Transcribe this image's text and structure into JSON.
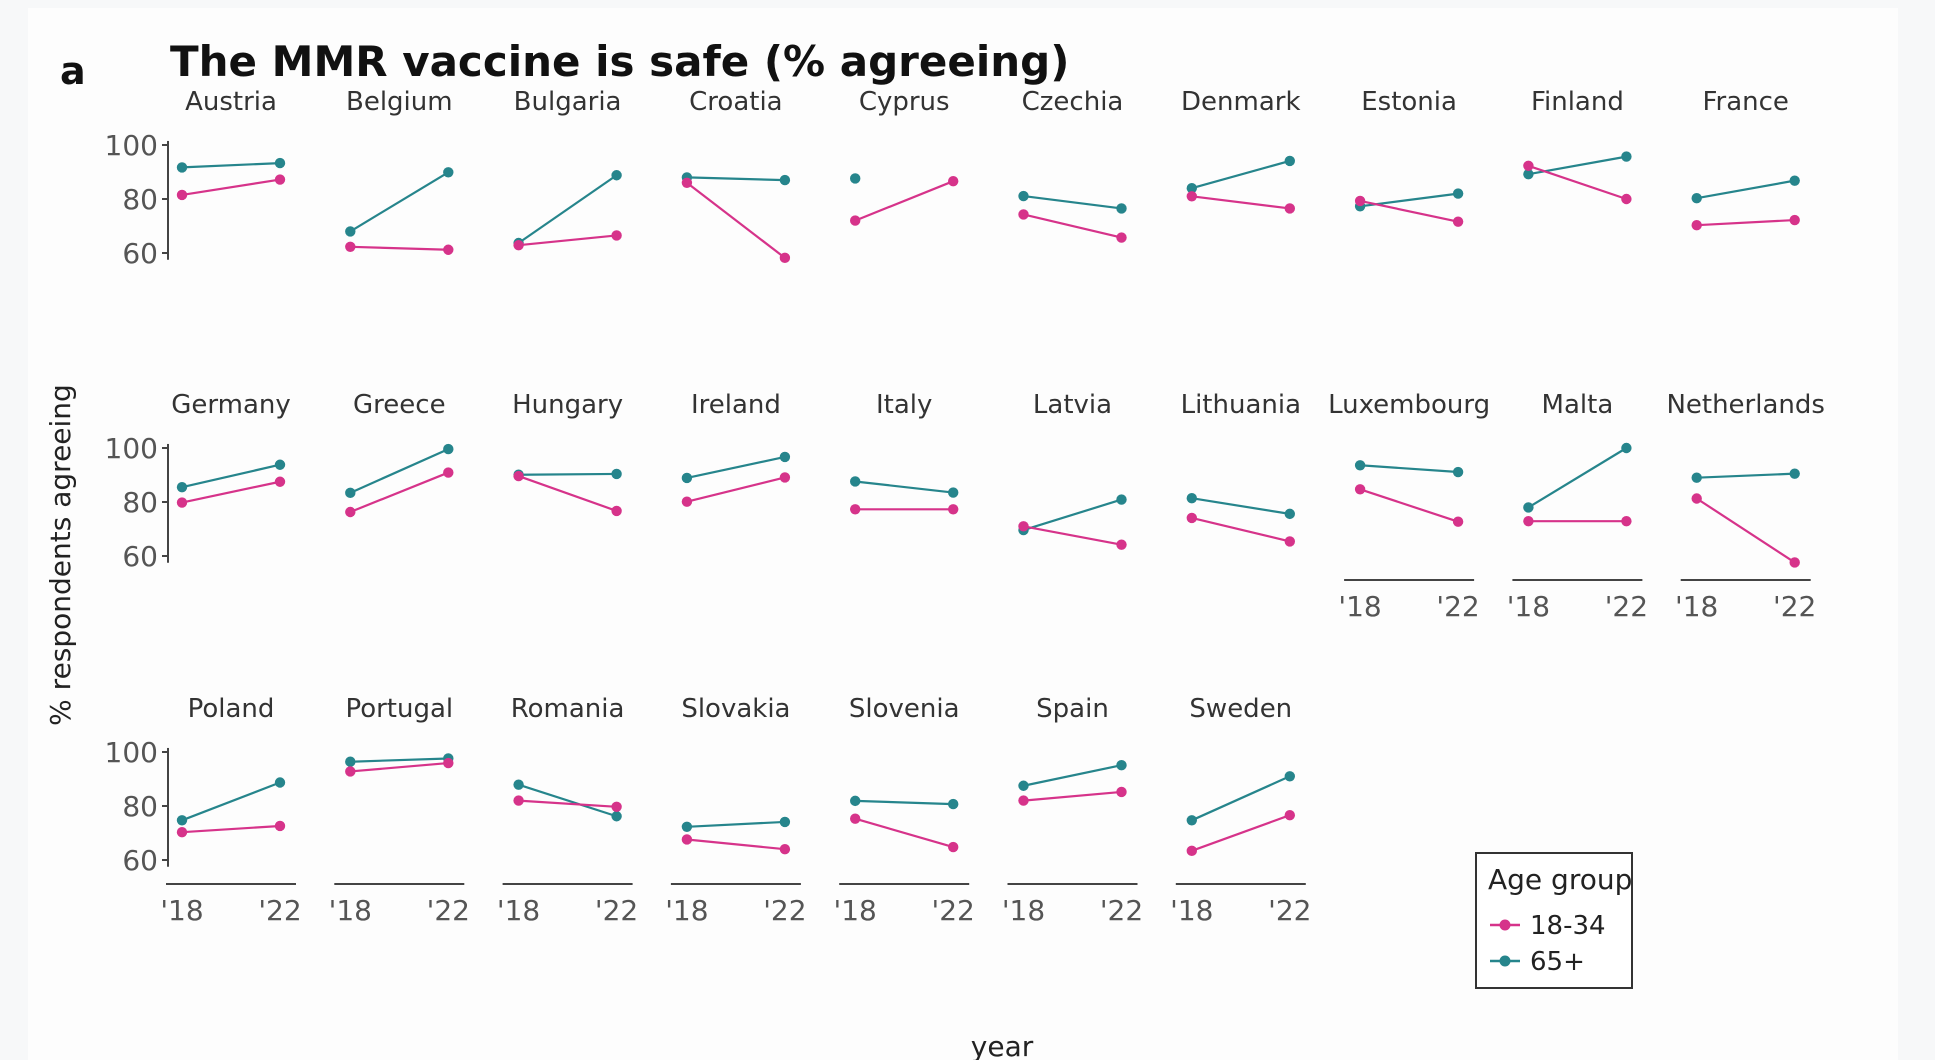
{
  "figure": {
    "panel_letter": "a",
    "title": "The MMR vaccine is safe (% agreeing)"
  },
  "chart_data": {
    "type": "line",
    "title": "The MMR vaccine is safe (% agreeing)",
    "xlabel": "year",
    "ylabel": "% respondents agreeing",
    "x": [
      "'18",
      "'22"
    ],
    "ylim": [
      57,
      101
    ],
    "yticks": [
      "60",
      "80",
      "100"
    ],
    "grid": false,
    "legend": {
      "title": "Age group",
      "position": "bottom-right",
      "entries": [
        {
          "label": "18-34",
          "color": "#d6338a"
        },
        {
          "label": "65+",
          "color": "#26858c"
        }
      ]
    },
    "series_colors": {
      "young": "#d6338a",
      "old": "#26858c"
    },
    "facets": [
      {
        "country": "Austria",
        "young": [
          81.5,
          87.2
        ],
        "old": [
          91.7,
          93.3
        ]
      },
      {
        "country": "Belgium",
        "young": [
          62.3,
          61.2
        ],
        "old": [
          68.0,
          89.9
        ]
      },
      {
        "country": "Bulgaria",
        "young": [
          62.9,
          66.5
        ],
        "old": [
          63.7,
          88.8
        ]
      },
      {
        "country": "Croatia",
        "young": [
          86.0,
          58.2
        ],
        "old": [
          88.0,
          87.0
        ]
      },
      {
        "country": "Cyprus",
        "young": [
          72.0,
          86.6
        ],
        "old": [
          87.6,
          null
        ]
      },
      {
        "country": "Czechia",
        "young": [
          74.3,
          65.7
        ],
        "old": [
          81.1,
          76.5
        ]
      },
      {
        "country": "Denmark",
        "young": [
          81.0,
          76.5
        ],
        "old": [
          84.0,
          94.1
        ]
      },
      {
        "country": "Estonia",
        "young": [
          79.3,
          71.6
        ],
        "old": [
          77.3,
          82.0
        ]
      },
      {
        "country": "Finland",
        "young": [
          92.3,
          80.0
        ],
        "old": [
          89.2,
          95.7
        ]
      },
      {
        "country": "France",
        "young": [
          70.3,
          72.2
        ],
        "old": [
          80.3,
          86.8
        ]
      },
      {
        "country": "Germany",
        "young": [
          79.8,
          87.5
        ],
        "old": [
          85.5,
          93.8
        ]
      },
      {
        "country": "Greece",
        "young": [
          76.3,
          90.9
        ],
        "old": [
          83.4,
          99.6
        ]
      },
      {
        "country": "Hungary",
        "young": [
          89.6,
          76.7
        ],
        "old": [
          90.1,
          90.4
        ]
      },
      {
        "country": "Ireland",
        "young": [
          80.1,
          89.1
        ],
        "old": [
          88.9,
          96.7
        ]
      },
      {
        "country": "Italy",
        "young": [
          77.3,
          77.3
        ],
        "old": [
          87.6,
          83.5
        ]
      },
      {
        "country": "Latvia",
        "young": [
          71.0,
          64.2
        ],
        "old": [
          69.6,
          80.9
        ]
      },
      {
        "country": "Lithuania",
        "young": [
          74.1,
          65.4
        ],
        "old": [
          81.4,
          75.6
        ]
      },
      {
        "country": "Luxembourg",
        "young": [
          84.7,
          72.7
        ],
        "old": [
          93.6,
          91.1
        ]
      },
      {
        "country": "Malta",
        "young": [
          72.9,
          72.9
        ],
        "old": [
          78.0,
          100.0
        ]
      },
      {
        "country": "Netherlands",
        "young": [
          81.3,
          57.6
        ],
        "old": [
          89.0,
          90.5
        ]
      },
      {
        "country": "Poland",
        "young": [
          70.3,
          72.6
        ],
        "old": [
          74.7,
          88.7
        ]
      },
      {
        "country": "Portugal",
        "young": [
          92.8,
          95.9
        ],
        "old": [
          96.4,
          97.6
        ]
      },
      {
        "country": "Romania",
        "young": [
          82.0,
          79.7
        ],
        "old": [
          87.9,
          76.2
        ]
      },
      {
        "country": "Slovakia",
        "young": [
          67.6,
          64.0
        ],
        "old": [
          72.3,
          74.1
        ]
      },
      {
        "country": "Slovenia",
        "young": [
          75.3,
          64.8
        ],
        "old": [
          81.9,
          80.7
        ]
      },
      {
        "country": "Spain",
        "young": [
          82.0,
          85.2
        ],
        "old": [
          87.5,
          95.1
        ]
      },
      {
        "country": "Sweden",
        "young": [
          63.4,
          76.6
        ],
        "old": [
          74.7,
          91.0
        ]
      }
    ]
  }
}
